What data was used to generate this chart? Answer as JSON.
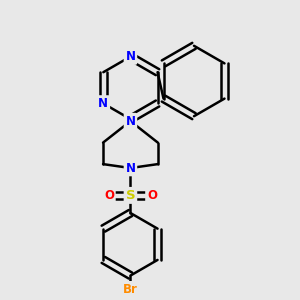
{
  "background_color": "#e8e8e8",
  "bond_color": "#000000",
  "bond_width": 1.8,
  "atom_colors": {
    "N": "#0000FF",
    "S": "#CCCC00",
    "O": "#FF0000",
    "Br": "#FF8C00",
    "C": "#000000"
  },
  "font_size_atom": 8.5,
  "fig_width": 3.0,
  "fig_height": 3.0,
  "dpi": 100
}
